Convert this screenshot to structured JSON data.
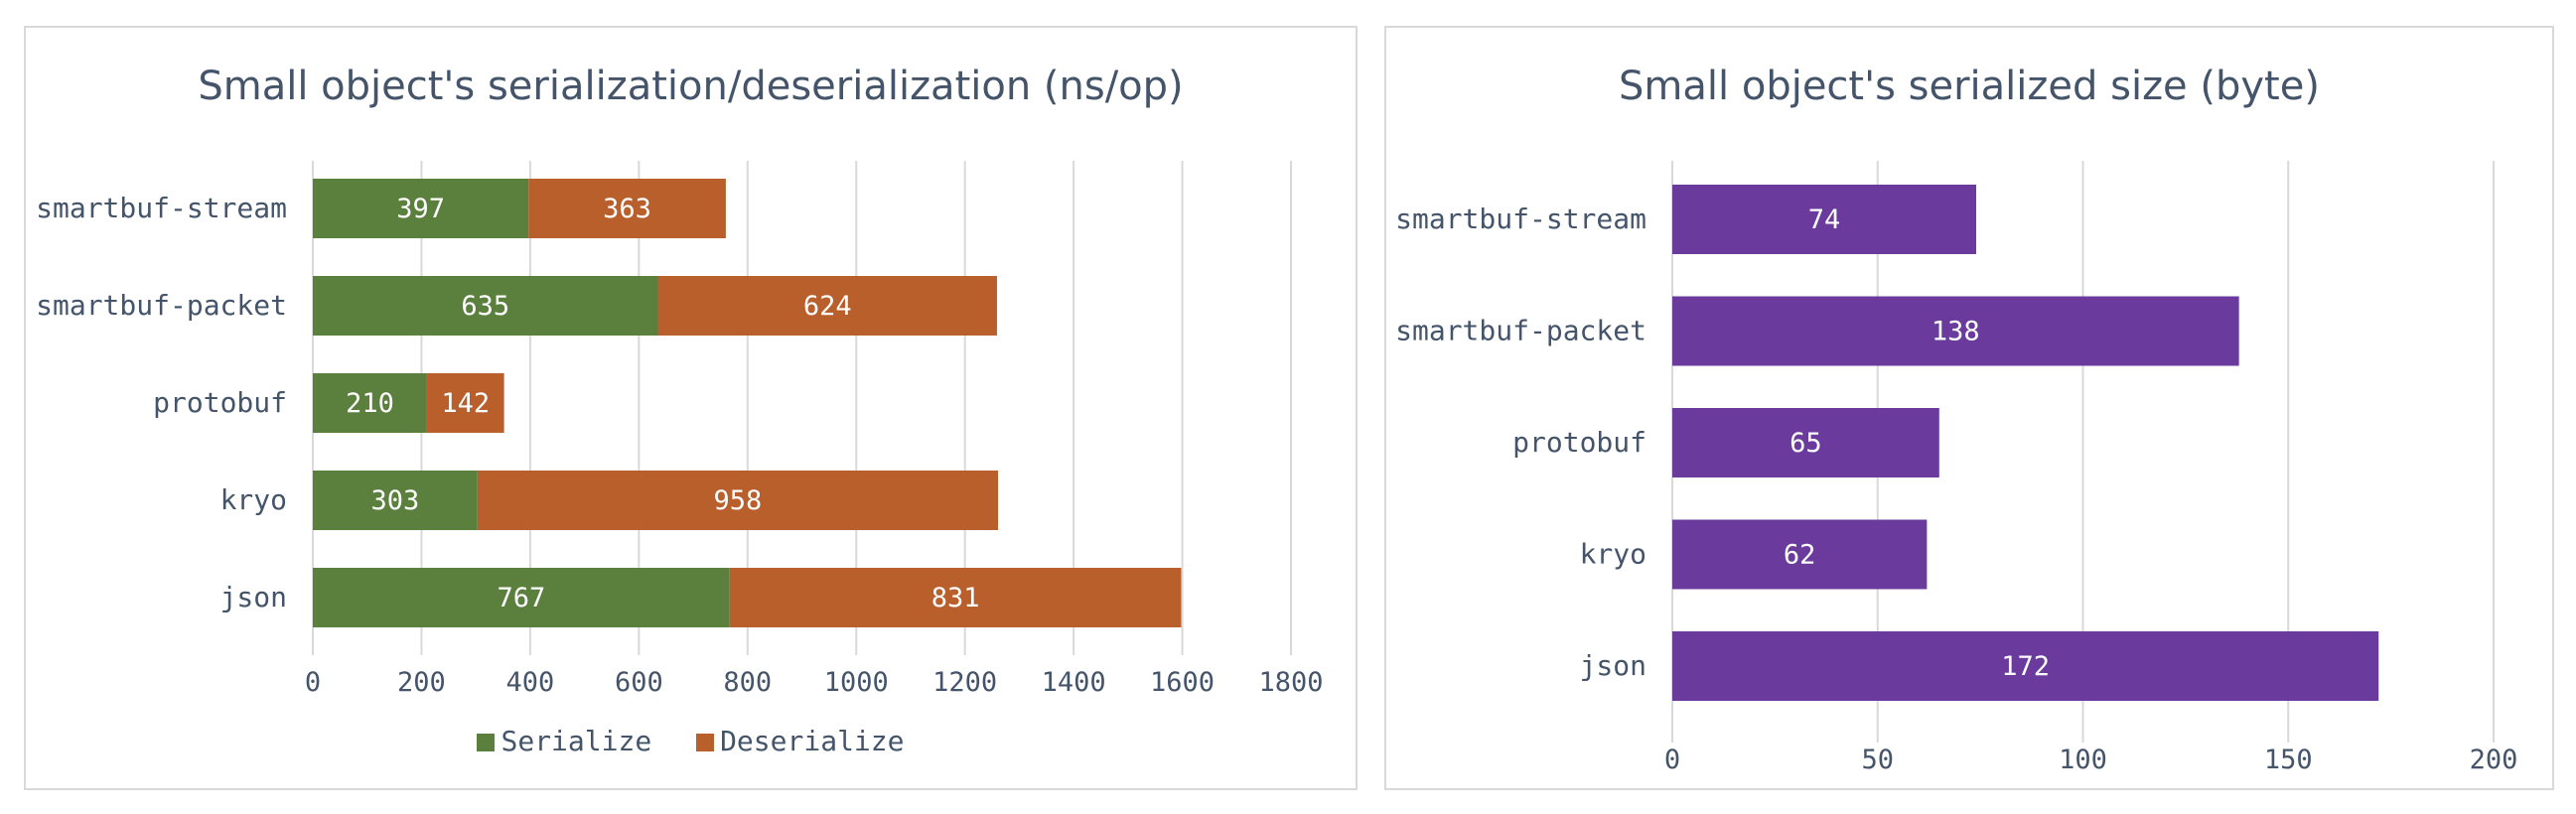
{
  "colors": {
    "serialize": "#5b803e",
    "deserialize": "#b85f2c",
    "size": "#6a3a9c",
    "grid": "#d9d9d9",
    "axis_text": "#44546a"
  },
  "chart_data": [
    {
      "type": "bar",
      "orientation": "horizontal",
      "stacked": true,
      "title": "Small object's serialization/deserialization (ns/op)",
      "categories": [
        "smartbuf-stream",
        "smartbuf-packet",
        "protobuf",
        "kryo",
        "json"
      ],
      "series": [
        {
          "name": "Serialize",
          "values": [
            397,
            635,
            210,
            303,
            767
          ]
        },
        {
          "name": "Deserialize",
          "values": [
            363,
            624,
            142,
            958,
            831
          ]
        }
      ],
      "xlim": [
        0,
        1800
      ],
      "xticks": [
        "0",
        "200",
        "400",
        "600",
        "800",
        "1000",
        "1200",
        "1400",
        "1600",
        "1800"
      ],
      "grid": true,
      "legend": "bottom"
    },
    {
      "type": "bar",
      "orientation": "horizontal",
      "title": "Small object's serialized size (byte)",
      "categories": [
        "smartbuf-stream",
        "smartbuf-packet",
        "protobuf",
        "kryo",
        "json"
      ],
      "values": [
        74,
        138,
        65,
        62,
        172
      ],
      "xlim": [
        0,
        200
      ],
      "xticks": [
        "0",
        "50",
        "100",
        "150",
        "200"
      ],
      "grid": true
    }
  ]
}
